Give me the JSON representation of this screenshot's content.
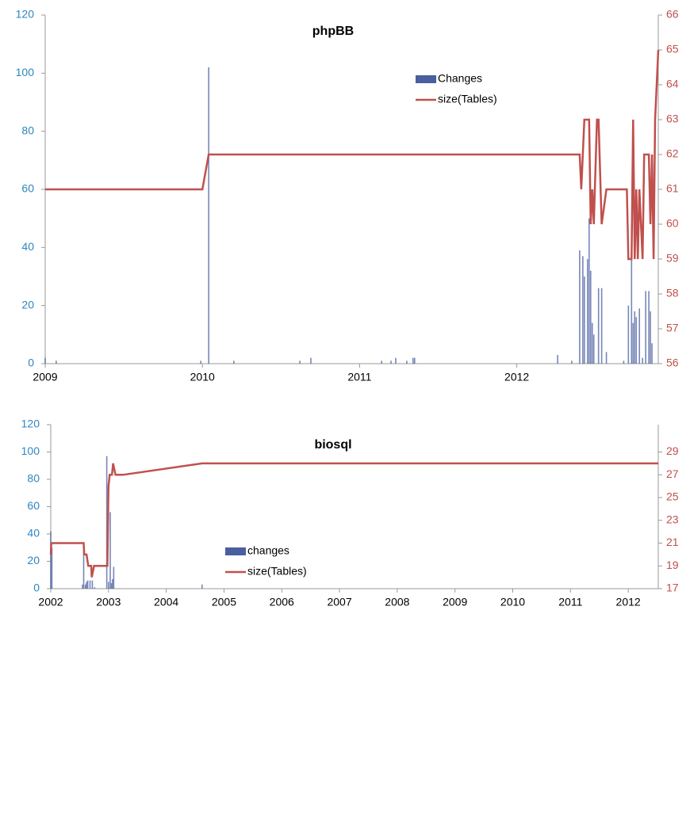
{
  "chart_data": [
    {
      "type": "bar-line",
      "title": "phpBB",
      "xlim": [
        2009,
        2012.9
      ],
      "xticks": [
        2009,
        2010,
        2011,
        2012
      ],
      "ylim": [
        0,
        120
      ],
      "yticks": [
        0,
        20,
        40,
        60,
        80,
        100,
        120
      ],
      "y2lim": [
        56,
        66
      ],
      "y2ticks": [
        56,
        57,
        58,
        59,
        60,
        61,
        62,
        63,
        64,
        65,
        66
      ],
      "series": [
        {
          "name": "Changes",
          "type": "bar",
          "color": "#4a5fa0",
          "x": [
            2009.0,
            2009.07,
            2009.99,
            2010.04,
            2010.2,
            2010.62,
            2010.69,
            2011.14,
            2011.2,
            2011.23,
            2011.3,
            2011.34,
            2011.35,
            2012.26,
            2012.35,
            2012.4,
            2012.42,
            2012.43,
            2012.45,
            2012.46,
            2012.47,
            2012.48,
            2012.49,
            2012.52,
            2012.54,
            2012.57,
            2012.68,
            2012.71,
            2012.73,
            2012.74,
            2012.75,
            2012.76,
            2012.78,
            2012.8,
            2012.82,
            2012.84,
            2012.85,
            2012.86
          ],
          "values": [
            2,
            1,
            1,
            102,
            1,
            1,
            2,
            1,
            1,
            2,
            1,
            2,
            2,
            3,
            1,
            39,
            37,
            30,
            36,
            50,
            32,
            14,
            10,
            26,
            26,
            4,
            1,
            20,
            39,
            14,
            18,
            16,
            19,
            2,
            25,
            25,
            18,
            7
          ]
        },
        {
          "name": "size(Tables)",
          "type": "line",
          "color": "#c0504d",
          "axis": "y2",
          "x": [
            2009.0,
            2010.0,
            2010.04,
            2012.4,
            2012.41,
            2012.43,
            2012.46,
            2012.47,
            2012.48,
            2012.49,
            2012.51,
            2012.52,
            2012.54,
            2012.57,
            2012.7,
            2012.71,
            2012.73,
            2012.74,
            2012.75,
            2012.76,
            2012.77,
            2012.78,
            2012.8,
            2012.81,
            2012.84,
            2012.85,
            2012.86,
            2012.87,
            2012.88,
            2012.9
          ],
          "values": [
            61,
            61,
            62,
            62,
            61,
            63,
            63,
            60,
            61,
            60,
            63,
            63,
            60,
            61,
            61,
            59,
            59,
            63,
            59,
            61,
            59,
            61,
            59,
            62,
            62,
            60,
            62,
            59,
            63,
            65
          ]
        }
      ]
    },
    {
      "type": "bar-line",
      "title": "biosql",
      "xlim": [
        2002,
        2012.52
      ],
      "xticks": [
        2002,
        2003,
        2004,
        2005,
        2006,
        2007,
        2008,
        2009,
        2010,
        2011,
        2012
      ],
      "ylim": [
        0,
        120
      ],
      "yticks": [
        0,
        20,
        40,
        60,
        80,
        100,
        120
      ],
      "y2lim": [
        17,
        31.4
      ],
      "y2ticks": [
        17,
        19,
        21,
        23,
        25,
        27,
        29
      ],
      "series": [
        {
          "name": "changes",
          "type": "bar",
          "color": "#4a5fa0",
          "x": [
            2002.0,
            2002.02,
            2002.55,
            2002.57,
            2002.6,
            2002.62,
            2002.64,
            2002.68,
            2002.72,
            2002.76,
            2002.97,
            2003.0,
            2003.03,
            2003.05,
            2003.07,
            2003.09,
            2004.62
          ],
          "values": [
            42,
            30,
            3,
            28,
            3,
            5,
            6,
            6,
            6,
            1,
            97,
            5,
            56,
            4,
            7,
            16,
            3
          ]
        },
        {
          "name": "size(Tables)",
          "type": "line",
          "color": "#c0504d",
          "axis": "y2",
          "x": [
            2002.0,
            2002.01,
            2002.57,
            2002.58,
            2002.62,
            2002.65,
            2002.7,
            2002.71,
            2002.75,
            2002.98,
            2003.0,
            2003.02,
            2003.06,
            2003.08,
            2003.12,
            2003.25,
            2004.62,
            2012.52
          ],
          "values": [
            20,
            21,
            21,
            20,
            20,
            19,
            19,
            18,
            19,
            19,
            26,
            27,
            27,
            28,
            27,
            27,
            28,
            28
          ]
        }
      ]
    }
  ]
}
